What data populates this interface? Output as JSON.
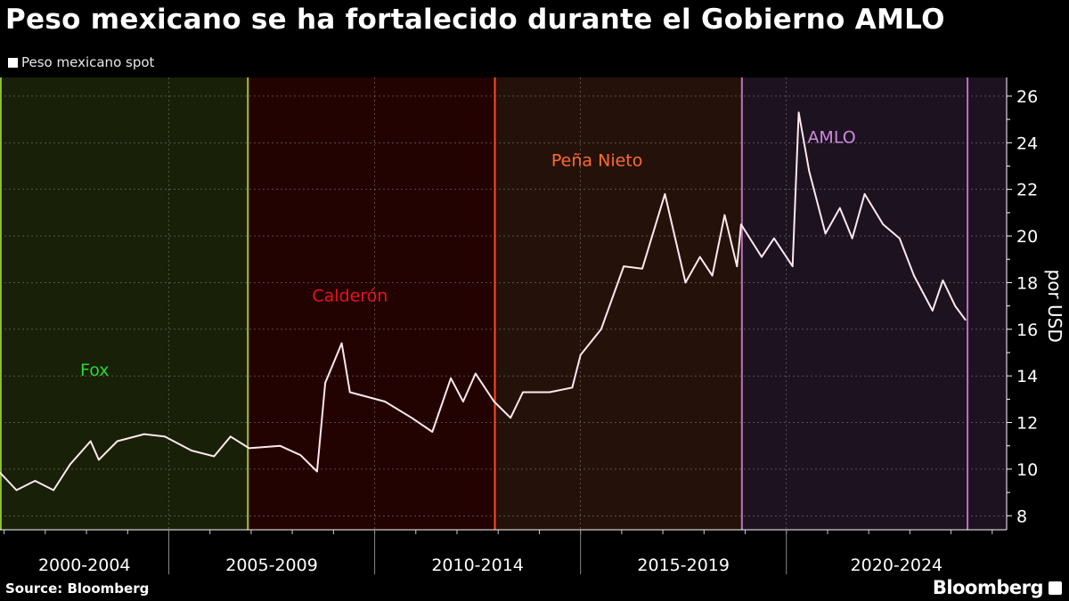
{
  "title": "Peso mexicano se ha fortalecido durante el Gobierno AMLO",
  "source": "Source: Bloomberg",
  "logo": "Bloomberg",
  "chart_data": {
    "type": "line",
    "title": "Peso mexicano se ha fortalecido durante el Gobierno AMLO",
    "ylabel": "por USD",
    "ylim": [
      7.4,
      26.8
    ],
    "yticks": [
      8,
      10,
      12,
      14,
      16,
      18,
      20,
      22,
      24,
      26
    ],
    "xlim": [
      2000.9,
      2025.35
    ],
    "x_period_labels": [
      {
        "label": "2000-2004",
        "from": 2000.9,
        "to": 2005
      },
      {
        "label": "2005-2009",
        "from": 2005,
        "to": 2010
      },
      {
        "label": "2010-2014",
        "from": 2010,
        "to": 2015
      },
      {
        "label": "2015-2019",
        "from": 2015,
        "to": 2020
      },
      {
        "label": "2020-2024",
        "from": 2020,
        "to": 2025.35
      }
    ],
    "grid": true,
    "legend": "top-left",
    "series": [
      {
        "name": "Peso mexicano spot",
        "color": "#ffe8ee",
        "x": [
          2000.9,
          2001.3,
          2001.75,
          2002.2,
          2002.6,
          2003.1,
          2003.3,
          2003.75,
          2004.4,
          2004.9,
          2005.55,
          2006.1,
          2006.5,
          2006.95,
          2007.7,
          2008.2,
          2008.6,
          2008.8,
          2009.2,
          2009.4,
          2010.25,
          2010.9,
          2011.4,
          2011.85,
          2012.15,
          2012.45,
          2012.9,
          2013.3,
          2013.6,
          2014.25,
          2014.8,
          2015.0,
          2015.5,
          2016.05,
          2016.5,
          2017.05,
          2017.55,
          2017.9,
          2018.2,
          2018.5,
          2018.8,
          2018.9,
          2019.4,
          2019.7,
          2020.15,
          2020.3,
          2020.55,
          2020.95,
          2021.3,
          2021.6,
          2021.9,
          2022.35,
          2022.75,
          2023.1,
          2023.55,
          2023.8,
          2024.1,
          2024.35
        ],
        "y": [
          9.85,
          9.1,
          9.5,
          9.1,
          10.2,
          11.2,
          10.4,
          11.2,
          11.5,
          11.4,
          10.8,
          10.55,
          11.4,
          10.9,
          11.0,
          10.6,
          9.9,
          13.7,
          15.4,
          13.3,
          12.9,
          12.2,
          11.6,
          13.9,
          12.9,
          14.1,
          12.9,
          12.2,
          13.3,
          13.3,
          13.5,
          14.9,
          16.0,
          18.7,
          18.6,
          21.8,
          18.0,
          19.1,
          18.3,
          20.9,
          18.7,
          20.5,
          19.1,
          19.9,
          18.7,
          25.3,
          22.8,
          20.1,
          21.2,
          19.9,
          21.8,
          20.5,
          19.9,
          18.3,
          16.8,
          18.1,
          17.0,
          16.4
        ]
      }
    ],
    "periods": [
      {
        "label": "Fox",
        "from": 2000.92,
        "to": 2006.92,
        "bg": "#182008",
        "line": "#8fc030",
        "label_color": "#2ed82e",
        "label_x": 2003.2,
        "label_y": 14.0
      },
      {
        "label": "Calderón",
        "from": 2006.92,
        "to": 2012.92,
        "bg": "#230202",
        "line": "#a8c030",
        "label_color": "#e8141a",
        "label_x": 2009.4,
        "label_y": 17.2
      },
      {
        "label": "Peña Nieto",
        "from": 2012.92,
        "to": 2018.92,
        "bg": "#24120a",
        "line": "#ff4a1c",
        "label_color": "#ff6a30",
        "label_x": 2015.4,
        "label_y": 23.0
      },
      {
        "label": "AMLO",
        "from": 2018.92,
        "to": 2024.4,
        "bg": "#1c1220",
        "line": "#c070c0",
        "label_color": "#d088e0",
        "label_x": 2021.1,
        "label_y": 24.0
      }
    ]
  }
}
